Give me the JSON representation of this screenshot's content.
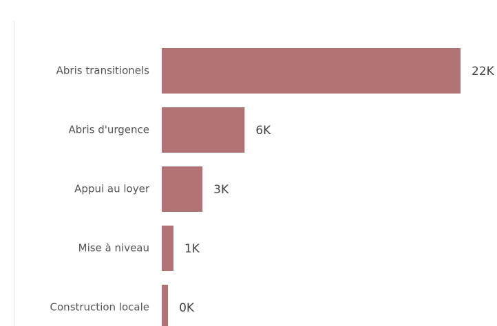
{
  "chart_data": {
    "type": "hbar",
    "categories": [
      "Abris transitionels",
      "Abris d'urgence",
      "Appui au loyer",
      "Mise à niveau",
      "Construction locale"
    ],
    "values": [
      22000,
      6100,
      3000,
      860,
      460
    ],
    "value_labels": [
      "22K",
      "6K",
      "3K",
      "1K",
      "0K"
    ],
    "color": "#b07272"
  }
}
